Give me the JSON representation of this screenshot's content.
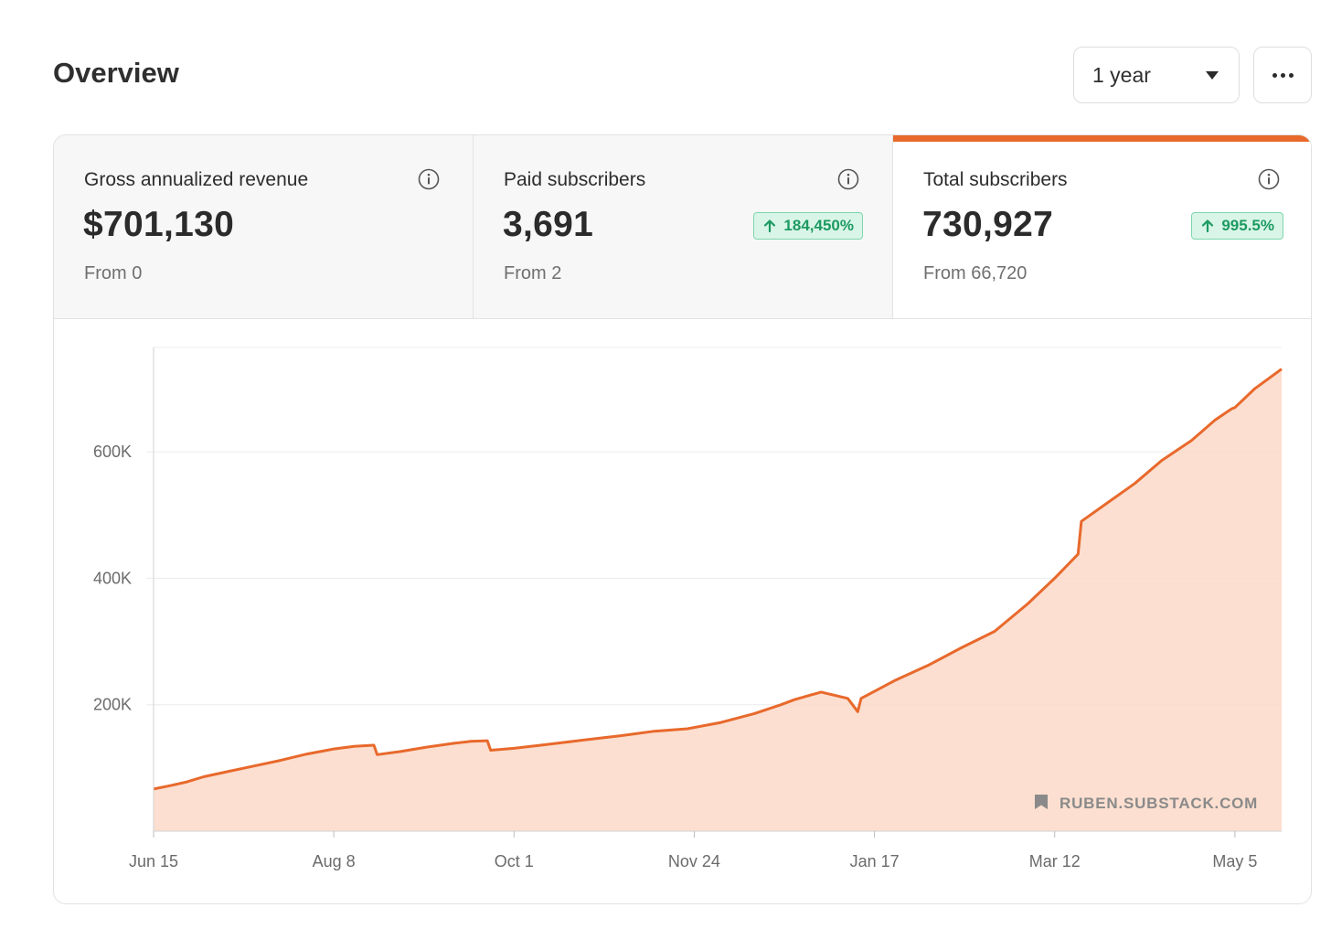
{
  "header": {
    "title": "Overview",
    "period": "1 year"
  },
  "metrics": [
    {
      "label": "Gross annualized revenue",
      "value": "$701,130",
      "from": "From 0",
      "change": null,
      "active": false
    },
    {
      "label": "Paid subscribers",
      "value": "3,691",
      "from": "From 2",
      "change": "184,450%",
      "active": false
    },
    {
      "label": "Total subscribers",
      "value": "730,927",
      "from": "From 66,720",
      "change": "995.5%",
      "active": true
    }
  ],
  "watermark": "RUBEN.SUBSTACK.COM",
  "colors": {
    "accent": "#e8692c",
    "fill": "#fcd9c8",
    "positive": "#1d9a62"
  },
  "chart_data": {
    "type": "area",
    "series": [
      {
        "x": [
          0,
          5,
          10,
          15,
          22,
          30,
          38,
          46,
          54,
          60,
          66,
          67,
          74,
          82,
          90,
          95,
          100,
          101,
          108,
          116,
          124,
          132,
          140,
          150,
          160,
          170,
          180,
          188,
          192,
          200,
          208,
          211,
          212,
          222,
          232,
          242,
          252,
          262,
          270,
          277,
          278,
          286,
          294,
          302,
          311,
          318,
          323,
          324,
          330,
          338
        ],
        "y": [
          66720,
          72000,
          78000,
          86000,
          94000,
          103000,
          112000,
          122000,
          130000,
          134000,
          136000,
          121000,
          126000,
          133000,
          139000,
          142000,
          143000,
          128000,
          131000,
          136000,
          141000,
          146000,
          151000,
          158000,
          162000,
          172000,
          186000,
          200000,
          208000,
          220000,
          210000,
          189000,
          210000,
          238000,
          262000,
          290000,
          316000,
          360000,
          400000,
          438000,
          490000,
          520000,
          550000,
          586000,
          618000,
          650000,
          668000,
          670000,
          700000,
          730927
        ]
      }
    ],
    "x_tick_labels": [
      "Jun 15",
      "Aug 8",
      "Oct 1",
      "Nov 24",
      "Jan 17",
      "Mar 12",
      "May 5"
    ],
    "x_tick_values": [
      0,
      54,
      108,
      162,
      216,
      270,
      324
    ],
    "xlim": [
      0,
      338
    ],
    "y_ticks": [
      200000,
      400000,
      600000
    ],
    "y_tick_labels": [
      "200K",
      "400K",
      "600K"
    ],
    "ylim": [
      0,
      765000
    ],
    "grid": true,
    "xlabel": "",
    "ylabel": ""
  }
}
